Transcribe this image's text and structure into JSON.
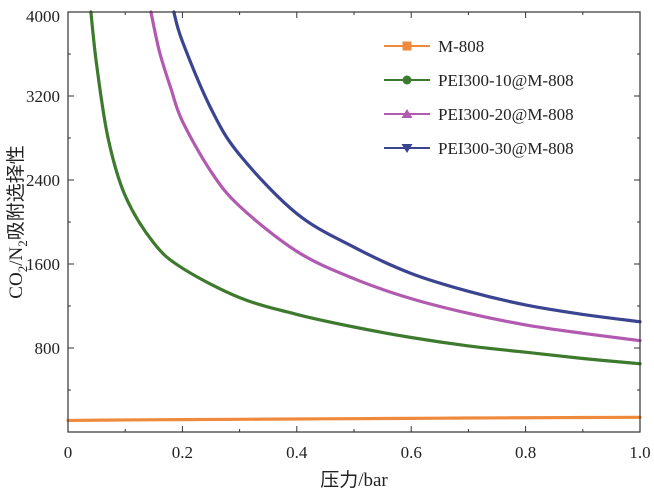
{
  "chart_data": {
    "type": "line",
    "title": "",
    "xlabel": "压力/bar",
    "ylabel_parts": [
      "CO",
      "2",
      "/N",
      "2",
      "吸附选择性"
    ],
    "xlim": [
      0,
      1.0
    ],
    "ylim": [
      0,
      4000
    ],
    "x_ticks": [
      0,
      0.2,
      0.4,
      0.6,
      0.8,
      1.0
    ],
    "x_tick_labels": [
      "0",
      "0.2",
      "0.4",
      "0.6",
      "0.8",
      "1.0"
    ],
    "y_ticks": [
      800,
      1600,
      2400,
      3200,
      4000
    ],
    "y_tick_labels": [
      "800",
      "1600",
      "2400",
      "3200",
      "4000"
    ],
    "legend_position": "top-right",
    "series": [
      {
        "name": "M-808",
        "color": "#ef8a3c",
        "marker": "square",
        "x": [
          0,
          0.1,
          0.2,
          0.3,
          0.4,
          0.5,
          0.6,
          0.7,
          0.8,
          0.9,
          1.0
        ],
        "values": [
          110,
          115,
          118,
          121,
          124,
          127,
          130,
          133,
          136,
          138,
          140
        ]
      },
      {
        "name": "PEI300-10@M-808",
        "color": "#3e7a2e",
        "marker": "circle",
        "x": [
          0.04,
          0.05,
          0.07,
          0.1,
          0.15,
          0.2,
          0.3,
          0.4,
          0.5,
          0.6,
          0.7,
          0.8,
          0.9,
          1.0
        ],
        "values": [
          4000,
          3500,
          2800,
          2250,
          1800,
          1560,
          1280,
          1120,
          1000,
          900,
          820,
          760,
          700,
          650
        ]
      },
      {
        "name": "PEI300-20@M-808",
        "color": "#b25ab0",
        "marker": "triangle-up",
        "x": [
          0.145,
          0.16,
          0.18,
          0.2,
          0.25,
          0.3,
          0.4,
          0.5,
          0.6,
          0.7,
          0.8,
          0.9,
          1.0
        ],
        "values": [
          4000,
          3620,
          3270,
          2960,
          2480,
          2150,
          1720,
          1460,
          1270,
          1130,
          1020,
          940,
          870
        ]
      },
      {
        "name": "PEI300-30@M-808",
        "color": "#3a4490",
        "marker": "triangle-down",
        "x": [
          0.185,
          0.2,
          0.25,
          0.3,
          0.4,
          0.5,
          0.6,
          0.7,
          0.8,
          0.9,
          1.0
        ],
        "values": [
          4000,
          3720,
          3080,
          2640,
          2080,
          1760,
          1510,
          1340,
          1210,
          1120,
          1050
        ]
      }
    ]
  }
}
